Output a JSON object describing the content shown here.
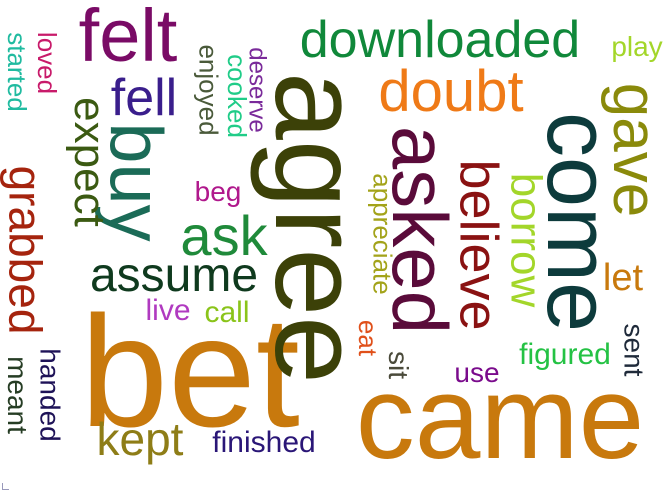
{
  "words": [
    {
      "text": "came",
      "color": "#c8790d",
      "orientation": "horizontal"
    },
    {
      "text": "bet",
      "color": "#c8790d",
      "orientation": "horizontal"
    },
    {
      "text": "agree",
      "color": "#3c4108",
      "orientation": "vertical"
    },
    {
      "text": "come",
      "color": "#0d3b3c",
      "orientation": "vertical"
    },
    {
      "text": "asked",
      "color": "#5a0b3a",
      "orientation": "vertical"
    },
    {
      "text": "felt",
      "color": "#7a0b66",
      "orientation": "horizontal"
    },
    {
      "text": "buy",
      "color": "#1b6b57",
      "orientation": "vertical"
    },
    {
      "text": "gave",
      "color": "#8a8a0b",
      "orientation": "vertical"
    },
    {
      "text": "downloaded",
      "color": "#10883a",
      "orientation": "horizontal"
    },
    {
      "text": "doubt",
      "color": "#ef7a17",
      "orientation": "horizontal"
    },
    {
      "text": "believe",
      "color": "#8a1212",
      "orientation": "vertical"
    },
    {
      "text": "grabbed",
      "color": "#a5240e",
      "orientation": "vertical"
    },
    {
      "text": "expect",
      "color": "#3b5a12",
      "orientation": "vertical"
    },
    {
      "text": "ask",
      "color": "#1f8a3a",
      "orientation": "horizontal"
    },
    {
      "text": "assume",
      "color": "#0f3a1e",
      "orientation": "horizontal"
    },
    {
      "text": "borrow",
      "color": "#a3d62a",
      "orientation": "vertical"
    },
    {
      "text": "kept",
      "color": "#8e7d17",
      "orientation": "horizontal"
    },
    {
      "text": "fell",
      "color": "#3a1e8c",
      "orientation": "horizontal"
    },
    {
      "text": "finished",
      "color": "#2a1677",
      "orientation": "horizontal"
    },
    {
      "text": "handed",
      "color": "#1e1257",
      "orientation": "vertical"
    },
    {
      "text": "meant",
      "color": "#263d24",
      "orientation": "vertical"
    },
    {
      "text": "figured",
      "color": "#24c244",
      "orientation": "horizontal"
    },
    {
      "text": "appreciate",
      "color": "#a3a31a",
      "orientation": "vertical"
    },
    {
      "text": "enjoyed",
      "color": "#4a5a3a",
      "orientation": "vertical"
    },
    {
      "text": "cooked",
      "color": "#20cc88",
      "orientation": "vertical"
    },
    {
      "text": "deserve",
      "color": "#7a2a9a",
      "orientation": "vertical"
    },
    {
      "text": "started",
      "color": "#20bba0",
      "orientation": "vertical"
    },
    {
      "text": "loved",
      "color": "#c81a6a",
      "orientation": "vertical"
    },
    {
      "text": "play",
      "color": "#a3d62a",
      "orientation": "horizontal"
    },
    {
      "text": "let",
      "color": "#c8790d",
      "orientation": "horizontal"
    },
    {
      "text": "sent",
      "color": "#1f2a3a",
      "orientation": "vertical"
    },
    {
      "text": "use",
      "color": "#7a0b8c",
      "orientation": "horizontal"
    },
    {
      "text": "sit",
      "color": "#4a4a3a",
      "orientation": "vertical"
    },
    {
      "text": "eat",
      "color": "#e0501a",
      "orientation": "vertical"
    },
    {
      "text": "beg",
      "color": "#b0188c",
      "orientation": "horizontal"
    },
    {
      "text": "live",
      "color": "#b03ac0",
      "orientation": "horizontal"
    },
    {
      "text": "call",
      "color": "#8ac41a",
      "orientation": "horizontal"
    }
  ]
}
